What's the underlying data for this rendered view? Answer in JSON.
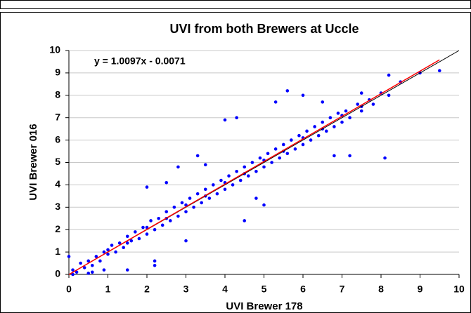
{
  "chart_data": {
    "type": "scatter",
    "title": "UVI from both Brewers at Uccle",
    "x_label": "UVI Brewer 178",
    "y_label": "UVI Brewer 016",
    "xlim": [
      0,
      10
    ],
    "ylim": [
      0,
      10
    ],
    "xticks": [
      0,
      1,
      2,
      3,
      4,
      5,
      6,
      7,
      8,
      9,
      10
    ],
    "yticks": [
      0,
      1,
      2,
      3,
      4,
      5,
      6,
      7,
      8,
      9,
      10
    ],
    "grid": true,
    "series": [
      {
        "color": "#0000ff",
        "x": [
          0.1,
          0.2,
          0.3,
          0.4,
          0.5,
          0.6,
          0.7,
          0.8,
          0.9,
          1.0,
          1.1,
          1.2,
          1.3,
          1.4,
          1.5,
          1.6,
          1.7,
          1.8,
          1.9,
          2.0,
          2.1,
          2.2,
          2.3,
          2.4,
          2.5,
          2.6,
          2.7,
          2.8,
          2.9,
          3.0,
          3.1,
          3.2,
          3.3,
          3.4,
          3.5,
          3.6,
          3.7,
          3.8,
          3.9,
          4.0,
          4.1,
          4.2,
          4.3,
          4.4,
          4.5,
          4.6,
          4.7,
          4.8,
          4.9,
          5.0,
          5.1,
          5.2,
          5.3,
          5.4,
          5.5,
          5.6,
          5.7,
          5.8,
          5.9,
          6.0,
          6.1,
          6.2,
          6.3,
          6.4,
          6.5,
          6.6,
          6.7,
          6.8,
          6.9,
          7.0,
          7.1,
          7.2,
          7.4,
          7.5,
          7.7,
          7.8,
          8.0,
          8.2,
          8.5,
          9.0,
          9.5,
          0.5,
          0.6,
          0.9,
          1.5,
          2.2,
          2.2,
          2.0,
          2.5,
          3.0,
          3.5,
          4.0,
          4.3,
          4.5,
          5.0,
          5.3,
          6.0,
          6.8,
          7.2,
          8.1,
          8.2,
          0.0,
          0.1,
          5.6,
          6.5,
          7.5,
          3.3,
          2.8,
          4.8,
          1.0,
          2.0,
          3.0,
          4.0,
          5.0,
          6.0,
          7.0,
          1.5,
          2.5,
          3.5,
          4.5,
          5.5,
          6.5,
          7.5
        ],
        "values": [
          0.2,
          0.1,
          0.5,
          0.3,
          0.6,
          0.4,
          0.8,
          0.6,
          1.0,
          0.9,
          1.3,
          1.0,
          1.4,
          1.2,
          1.7,
          1.5,
          1.9,
          1.6,
          2.1,
          1.8,
          2.4,
          2.0,
          2.5,
          2.2,
          2.8,
          2.4,
          3.0,
          2.6,
          3.2,
          2.8,
          3.4,
          3.0,
          3.6,
          3.2,
          3.8,
          3.4,
          4.0,
          3.6,
          4.2,
          3.8,
          4.4,
          4.0,
          4.6,
          4.2,
          4.8,
          4.4,
          5.0,
          4.6,
          5.2,
          4.8,
          5.4,
          5.0,
          5.6,
          5.2,
          5.8,
          5.4,
          6.0,
          5.6,
          6.2,
          5.8,
          6.4,
          6.0,
          6.6,
          6.2,
          6.8,
          6.4,
          7.0,
          6.6,
          7.2,
          6.8,
          7.3,
          7.0,
          7.6,
          7.3,
          7.8,
          7.6,
          8.1,
          8.0,
          8.6,
          9.0,
          9.1,
          0.05,
          0.1,
          0.2,
          0.2,
          0.4,
          0.6,
          3.9,
          4.1,
          1.5,
          4.9,
          6.9,
          7.0,
          2.4,
          3.1,
          7.7,
          8.0,
          5.3,
          5.3,
          5.2,
          8.9,
          0.8,
          0.0,
          8.2,
          7.7,
          8.1,
          5.3,
          4.8,
          3.4,
          1.1,
          2.1,
          3.1,
          4.1,
          5.1,
          6.1,
          7.1,
          1.4,
          2.5,
          3.5,
          4.5,
          5.5,
          6.5,
          7.5
        ]
      }
    ],
    "fit": {
      "label": "y = 1.0097x - 0.0071",
      "slope": 1.0097,
      "intercept": -0.0071,
      "xrange": [
        0,
        9.5
      ],
      "color": "#ff0000"
    },
    "reference_line": {
      "x": [
        0,
        10
      ],
      "values": [
        0,
        10
      ],
      "color": "#000000"
    }
  }
}
